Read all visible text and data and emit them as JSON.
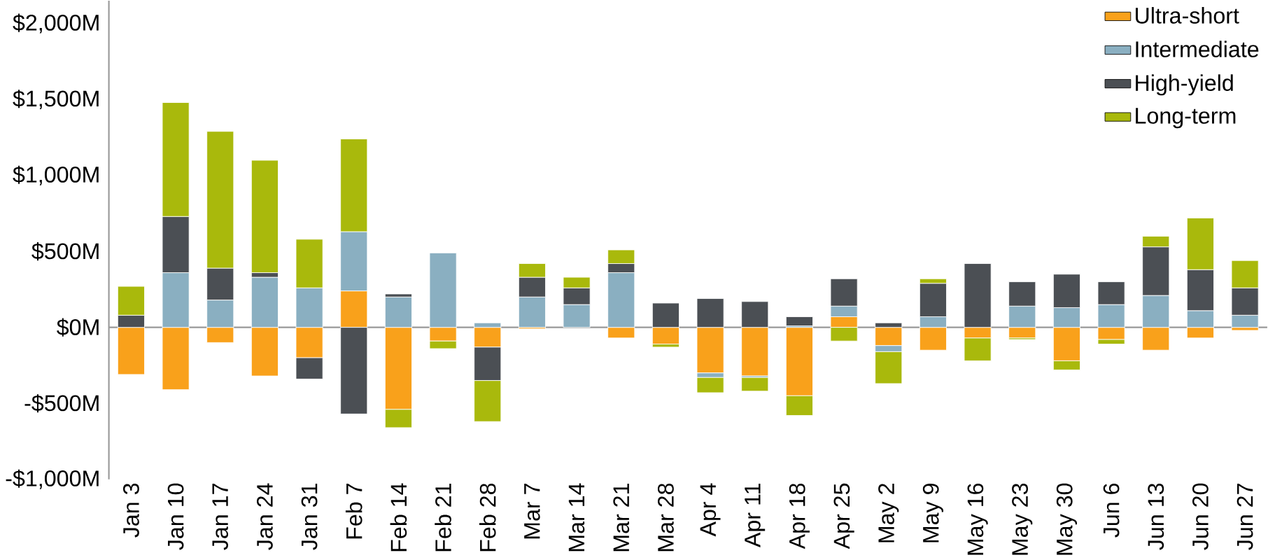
{
  "chart_data": {
    "type": "bar",
    "stacked": true,
    "categories": [
      "Jan 3",
      "Jan 10",
      "Jan 17",
      "Jan 24",
      "Jan 31",
      "Feb 7",
      "Feb 14",
      "Feb 21",
      "Feb 28",
      "Mar 7",
      "Mar 14",
      "Mar 21",
      "Mar 28",
      "Apr 4",
      "Apr 11",
      "Apr 18",
      "Apr 25",
      "May 2",
      "May 9",
      "May 16",
      "May 23",
      "May 30",
      "Jun 6",
      "Jun 13",
      "Jun 20",
      "Jun 27"
    ],
    "series": [
      {
        "name": "Ultra-short",
        "color": "#f9a11b",
        "values": [
          -310,
          -410,
          -100,
          -320,
          -200,
          240,
          -540,
          -90,
          -130,
          -10,
          0,
          -70,
          -110,
          -300,
          -320,
          -450,
          70,
          -120,
          -150,
          -70,
          -70,
          -220,
          -80,
          -150,
          -70,
          -20
        ]
      },
      {
        "name": "Intermediate",
        "color": "#8aafc1",
        "values": [
          0,
          360,
          180,
          330,
          260,
          390,
          200,
          490,
          30,
          200,
          150,
          360,
          0,
          -30,
          -10,
          10,
          70,
          -40,
          70,
          0,
          140,
          130,
          150,
          210,
          110,
          80
        ]
      },
      {
        "name": "High-yield",
        "color": "#4b4f54",
        "values": [
          80,
          370,
          210,
          30,
          -140,
          -570,
          20,
          0,
          -220,
          130,
          110,
          60,
          160,
          190,
          170,
          60,
          180,
          30,
          220,
          420,
          160,
          220,
          150,
          320,
          270,
          180
        ]
      },
      {
        "name": "Long-term",
        "color": "#a9b90c",
        "values": [
          190,
          750,
          900,
          740,
          320,
          610,
          -120,
          -50,
          -270,
          90,
          70,
          90,
          -20,
          -100,
          -90,
          -130,
          -90,
          -210,
          30,
          -150,
          -10,
          -60,
          -30,
          70,
          340,
          180
        ]
      }
    ],
    "ylim": [
      -1000,
      2150
    ],
    "yticks": [
      {
        "value": -1000,
        "label": "-$1,000M"
      },
      {
        "value": -500,
        "label": "-$500M"
      },
      {
        "value": 0,
        "label": "$0M"
      },
      {
        "value": 500,
        "label": "$500M"
      },
      {
        "value": 1000,
        "label": "$1,000M"
      },
      {
        "value": 1500,
        "label": "$1,500M"
      },
      {
        "value": 2000,
        "label": "$2,000M"
      }
    ],
    "legend": "top right"
  }
}
